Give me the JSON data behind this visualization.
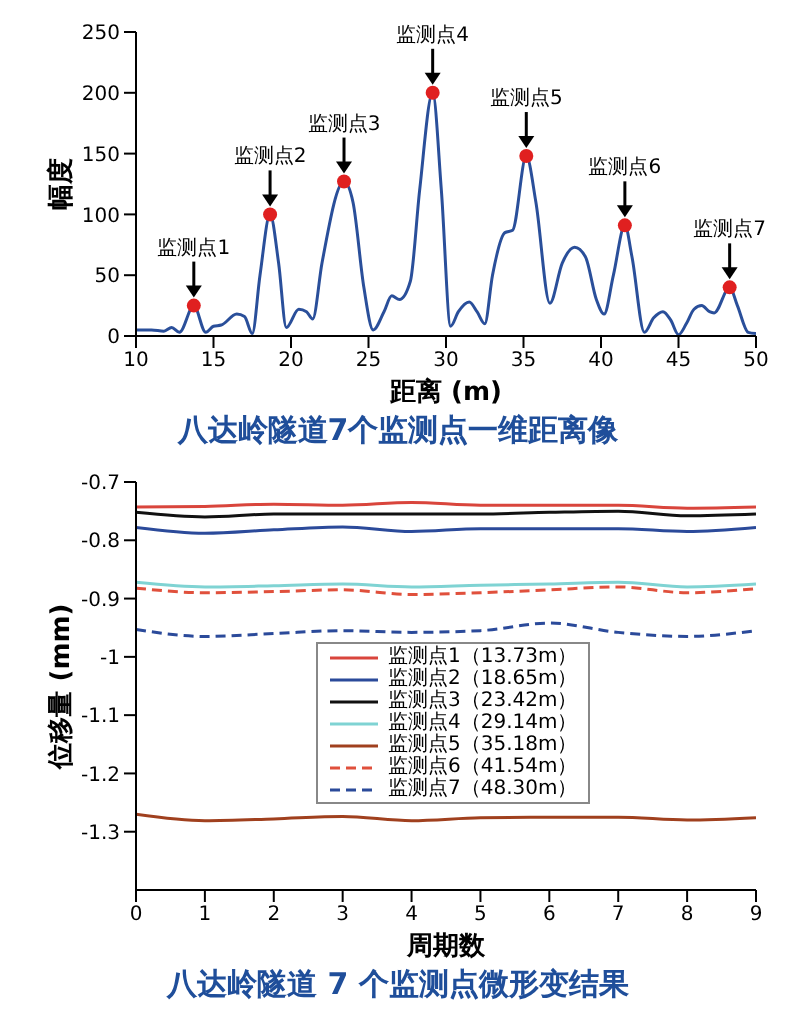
{
  "chart_data": [
    {
      "type": "line",
      "title": "八达岭隧道7个监测点一维距离像",
      "xlabel": "距离 (m)",
      "ylabel": "幅度",
      "xlim": [
        10,
        50
      ],
      "xticks": [
        10,
        15,
        20,
        25,
        30,
        35,
        40,
        45,
        50
      ],
      "ylim": [
        0,
        250
      ],
      "yticks": [
        0,
        50,
        100,
        150,
        200,
        250
      ],
      "marker": "none",
      "grid": false,
      "series": [
        {
          "color": "#2a4f9a",
          "x": [
            10,
            11,
            11.8,
            12.3,
            12.8,
            13.73,
            14.5,
            15,
            15.5,
            16.5,
            17,
            17.5,
            18,
            18.65,
            19.2,
            19.7,
            20.5,
            21,
            21.4,
            22,
            23.42,
            24,
            24.7,
            25.3,
            26,
            26.5,
            27,
            27.7,
            28.3,
            29.14,
            29.7,
            30.3,
            30.8,
            31.5,
            32,
            32.5,
            33,
            33.8,
            34.3,
            35.18,
            35.8,
            36.7,
            37.5,
            38.3,
            39,
            39.7,
            40.2,
            40.8,
            41.54,
            42,
            42.8,
            43.4,
            44,
            44.5,
            45,
            45.5,
            46,
            46.5,
            47,
            47.3,
            48.3,
            48.8,
            49.5,
            50
          ],
          "values": [
            5,
            5,
            4,
            7,
            3,
            25,
            3,
            8,
            9,
            18,
            16,
            2,
            50,
            100,
            60,
            7,
            22,
            20,
            14,
            60,
            127,
            110,
            40,
            5,
            20,
            33,
            30,
            45,
            120,
            200,
            120,
            8,
            20,
            28,
            20,
            10,
            50,
            85,
            87,
            148,
            110,
            27,
            60,
            73,
            65,
            30,
            18,
            50,
            91,
            65,
            3,
            15,
            20,
            13,
            1,
            10,
            22,
            25,
            20,
            19,
            40,
            25,
            3,
            2
          ]
        },
        {
          "type": "scatter",
          "color": "#e02020",
          "marker": "circle",
          "x": [
            13.73,
            18.65,
            23.42,
            29.14,
            35.18,
            41.54,
            48.3
          ],
          "values": [
            25,
            100,
            127,
            200,
            148,
            91,
            40
          ]
        }
      ],
      "annotations": [
        {
          "text": "监测点1",
          "x": 13.73,
          "y": 25
        },
        {
          "text": "监测点2",
          "x": 18.65,
          "y": 100
        },
        {
          "text": "监测点3",
          "x": 23.42,
          "y": 127
        },
        {
          "text": "监测点4",
          "x": 29.14,
          "y": 200
        },
        {
          "text": "监测点5",
          "x": 35.18,
          "y": 148
        },
        {
          "text": "监测点6",
          "x": 41.54,
          "y": 91
        },
        {
          "text": "监测点7",
          "x": 48.3,
          "y": 40
        }
      ]
    },
    {
      "type": "line",
      "title": "八达岭隧道 7 个监测点微形变结果",
      "xlabel": "周期数",
      "ylabel": "位移量 (mm)",
      "x": [
        0,
        1,
        2,
        3,
        4,
        5,
        6,
        7,
        8,
        9
      ],
      "xlim": [
        0,
        9
      ],
      "xticks": [
        0,
        1,
        2,
        3,
        4,
        5,
        6,
        7,
        8,
        9
      ],
      "ylim": [
        -1.4,
        -0.7
      ],
      "yticks": [
        -0.7,
        -0.8,
        -0.9,
        -1,
        -1.1,
        -1.2,
        -1.3
      ],
      "legend": "center",
      "marker": "none",
      "grid": false,
      "series": [
        {
          "name": "监测点1（13.73m）",
          "color": "#d9453c",
          "line_style": "solid",
          "values": [
            -0.743,
            -0.742,
            -0.738,
            -0.74,
            -0.735,
            -0.74,
            -0.74,
            -0.74,
            -0.745,
            -0.743
          ]
        },
        {
          "name": "监测点2（18.65m）",
          "color": "#2b4a9a",
          "line_style": "solid",
          "values": [
            -0.778,
            -0.788,
            -0.782,
            -0.777,
            -0.785,
            -0.78,
            -0.78,
            -0.78,
            -0.785,
            -0.778
          ]
        },
        {
          "name": "监测点3（23.42m）",
          "color": "#111111",
          "line_style": "solid",
          "values": [
            -0.752,
            -0.76,
            -0.755,
            -0.755,
            -0.755,
            -0.755,
            -0.752,
            -0.75,
            -0.758,
            -0.755
          ]
        },
        {
          "name": "监测点4（29.14m）",
          "color": "#7fd3d3",
          "line_style": "solid",
          "values": [
            -0.872,
            -0.88,
            -0.878,
            -0.875,
            -0.88,
            -0.877,
            -0.875,
            -0.872,
            -0.88,
            -0.875
          ]
        },
        {
          "name": "监测点5（35.18m）",
          "color": "#a0401e",
          "line_style": "solid",
          "values": [
            -1.27,
            -1.281,
            -1.278,
            -1.274,
            -1.281,
            -1.276,
            -1.275,
            -1.275,
            -1.28,
            -1.276
          ]
        },
        {
          "name": "监测点6（41.54m）",
          "color": "#e0503c",
          "line_style": "dashed",
          "values": [
            -0.882,
            -0.89,
            -0.888,
            -0.885,
            -0.893,
            -0.89,
            -0.885,
            -0.88,
            -0.89,
            -0.883
          ]
        },
        {
          "name": "监测点7（48.30m）",
          "color": "#2b4a9a",
          "line_style": "dashed",
          "values": [
            -0.953,
            -0.965,
            -0.96,
            -0.955,
            -0.958,
            -0.955,
            -0.942,
            -0.958,
            -0.965,
            -0.955
          ]
        }
      ]
    }
  ]
}
